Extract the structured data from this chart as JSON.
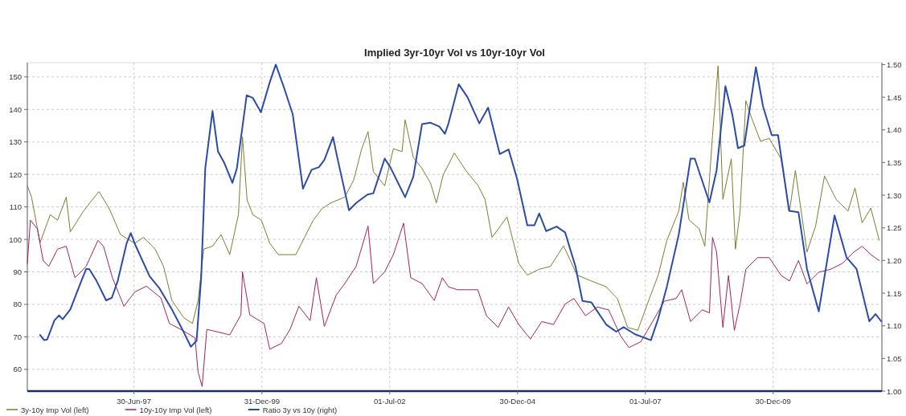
{
  "chart_data": {
    "type": "line",
    "title": "Implied 3yr-10yr Vol  vs  10yr-10yr Vol",
    "xlim": [
      "1995-05-30",
      "2012-02-15"
    ],
    "xticks": [
      {
        "value": "1997-06-30",
        "label": "30-Jun-97"
      },
      {
        "value": "1999-12-31",
        "label": "31-Dec-99"
      },
      {
        "value": "2002-07-01",
        "label": "01-Jul-02"
      },
      {
        "value": "2004-12-30",
        "label": "30-Dec-04"
      },
      {
        "value": "2007-07-01",
        "label": "01-Jul-07"
      },
      {
        "value": "2009-12-30",
        "label": "30-Dec-09"
      }
    ],
    "ylim": [
      53.3,
      154.4
    ],
    "yticks": [
      60,
      70,
      80,
      90,
      100,
      110,
      120,
      130,
      140,
      150
    ],
    "y2lim": [
      1.0,
      1.503
    ],
    "y2ticks": [
      {
        "value": 1.0,
        "label": "1.00"
      },
      {
        "value": 1.05,
        "label": "1.05"
      },
      {
        "value": 1.1,
        "label": "1.10"
      },
      {
        "value": 1.15,
        "label": "1.15"
      },
      {
        "value": 1.2,
        "label": "1.20"
      },
      {
        "value": 1.25,
        "label": "1.25"
      },
      {
        "value": 1.3,
        "label": "1.30"
      },
      {
        "value": 1.35,
        "label": "1.35"
      },
      {
        "value": 1.4,
        "label": "1.40"
      },
      {
        "value": 1.45,
        "label": "1.45"
      },
      {
        "value": 1.5,
        "label": "1.50"
      }
    ],
    "grid": true,
    "legend": "bottom left",
    "marker": "none",
    "line_style": "solid",
    "series": [
      {
        "name": "3y-10y Imp Vol (left)",
        "color": "#7d7d2e",
        "x": [
          "1995-05-30",
          "1995-06-29",
          "1995-08-29",
          "1995-11-10",
          "1996-01-01",
          "1996-03-03",
          "1996-04-01",
          "1996-07-01",
          "1996-09-02",
          "1996-10-23",
          "1997-01-05",
          "1997-03-25",
          "1997-07-05",
          "1997-09-06",
          "1997-11-28",
          "1998-01-27",
          "1998-03-28",
          "1998-06-21",
          "1998-08-22",
          "1998-10-01",
          "1998-11-10",
          "1999-01-12",
          "1999-03-14",
          "1999-05-15",
          "1999-07-16",
          "1999-08-14",
          "1999-09-16",
          "1999-10-27",
          "1999-12-27",
          "2000-02-25",
          "2000-04-26",
          "2000-06-29",
          "2000-08-29",
          "2000-10-30",
          "2001-01-01",
          "2001-03-03",
          "2001-05-04",
          "2001-08-14",
          "2001-10-16",
          "2001-12-13",
          "2002-01-27",
          "2002-03-06",
          "2002-05-26",
          "2002-07-27",
          "2002-09-27",
          "2002-10-19",
          "2002-12-16",
          "2003-02-17",
          "2003-04-19",
          "2003-05-30",
          "2003-07-19",
          "2003-08-25",
          "2003-10-05",
          "2003-12-27",
          "2004-03-21",
          "2004-05-12",
          "2004-07-01",
          "2004-10-16",
          "2005-01-08",
          "2005-03-10",
          "2005-06-03",
          "2005-08-22",
          "2005-11-24",
          "2006-02-28",
          "2006-06-10",
          "2006-09-24",
          "2006-12-13",
          "2007-02-25",
          "2007-05-08",
          "2007-07-30",
          "2007-10-01",
          "2007-12-02",
          "2008-02-25",
          "2008-03-28",
          "2008-05-08",
          "2008-07-19",
          "2008-08-29",
          "2008-10-23",
          "2008-12-02",
          "2009-01-05",
          "2009-03-06",
          "2009-04-05",
          "2009-05-08",
          "2009-06-18",
          "2009-07-30",
          "2009-10-01",
          "2009-12-02",
          "2010-02-25",
          "2010-04-26",
          "2010-06-07",
          "2010-08-29",
          "2010-10-30",
          "2011-01-01",
          "2011-03-25",
          "2011-06-18",
          "2011-08-07",
          "2011-09-27",
          "2011-11-28",
          "2012-01-27"
        ],
        "values": [
          116.5,
          113,
          99,
          107.6,
          105.9,
          113,
          102.3,
          108.5,
          112,
          114.7,
          109.4,
          101.5,
          98.8,
          100.6,
          97,
          91.7,
          81.2,
          75.9,
          74.1,
          81.2,
          97,
          97.9,
          101.5,
          95.3,
          107.6,
          131.5,
          112.1,
          107.6,
          105.9,
          98.8,
          95.3,
          95.3,
          95.3,
          100.6,
          105.9,
          109.4,
          111.2,
          113,
          118.2,
          127.9,
          133.2,
          120.9,
          116.5,
          127.9,
          127,
          136.8,
          125.3,
          121.8,
          117.3,
          111.2,
          120,
          123,
          126.6,
          121.2,
          116.7,
          112.3,
          100.6,
          106.9,
          92.6,
          89,
          90.8,
          91.7,
          98,
          89,
          87.2,
          85.4,
          81.8,
          72.9,
          72,
          81.8,
          89,
          99.7,
          108.7,
          117.6,
          106,
          103.3,
          97.9,
          132,
          153.4,
          112.3,
          124.8,
          97,
          108.7,
          142.7,
          137.3,
          130.2,
          131.1,
          124.8,
          108.7,
          121.2,
          96.1,
          104.2,
          119.5,
          112.3,
          108.7,
          115.8,
          105.1,
          109.6,
          99.7
        ]
      },
      {
        "name": "10y-10y Imp Vol (left)",
        "color": "#a3205f",
        "x": [
          "1995-05-30",
          "1995-06-21",
          "1995-08-10",
          "1995-09-20",
          "1995-10-30",
          "1996-01-01",
          "1996-03-03",
          "1996-05-04",
          "1996-07-23",
          "1996-10-16",
          "1996-11-24",
          "1997-01-27",
          "1997-04-19",
          "1997-07-05",
          "1997-09-27",
          "1998-01-08",
          "1998-03-10",
          "1998-05-30",
          "1998-09-09",
          "1998-10-01",
          "1998-10-30",
          "1998-12-02",
          "1999-02-20",
          "1999-05-15",
          "1999-08-03",
          "1999-08-14",
          "1999-10-05",
          "2000-01-16",
          "2000-02-25",
          "2000-05-19",
          "2000-07-19",
          "2000-09-20",
          "2000-12-09",
          "2001-01-23",
          "2001-03-21",
          "2001-06-14",
          "2001-08-14",
          "2001-11-03",
          "2002-01-27",
          "2002-03-06",
          "2002-05-26",
          "2002-07-27",
          "2002-10-08",
          "2002-11-28",
          "2003-02-17",
          "2003-05-15",
          "2003-07-12",
          "2003-08-25",
          "2003-10-27",
          "2003-12-27",
          "2004-03-21",
          "2004-05-22",
          "2004-08-14",
          "2004-10-27",
          "2005-01-08",
          "2005-04-01",
          "2005-06-21",
          "2005-09-13",
          "2005-12-05",
          "2006-02-06",
          "2006-04-30",
          "2006-07-23",
          "2006-10-12",
          "2007-01-05",
          "2007-03-06",
          "2007-05-30",
          "2007-08-22",
          "2007-11-14",
          "2008-02-06",
          "2008-03-17",
          "2008-05-19",
          "2008-08-10",
          "2008-10-01",
          "2008-10-23",
          "2008-11-21",
          "2009-01-05",
          "2009-02-14",
          "2009-03-28",
          "2009-05-08",
          "2009-06-18",
          "2009-09-09",
          "2009-12-02",
          "2010-02-25",
          "2010-04-26",
          "2010-06-29",
          "2010-08-29",
          "2010-11-21",
          "2011-02-14",
          "2011-05-08",
          "2011-07-30",
          "2011-09-27",
          "2011-11-28",
          "2012-01-27"
        ],
        "values": [
          92.6,
          105.9,
          103.2,
          93.5,
          91.7,
          97,
          97.9,
          88.2,
          91.7,
          99.7,
          97.9,
          88.2,
          79.4,
          83.8,
          85.6,
          82,
          74.1,
          72.3,
          69.7,
          59.1,
          54.7,
          72.3,
          71.5,
          70.6,
          76.8,
          90,
          76.8,
          74.1,
          66.2,
          68,
          72.3,
          79.4,
          75,
          88.2,
          73.2,
          82.9,
          86.4,
          91.7,
          104.1,
          86.4,
          90,
          95.3,
          105,
          88.2,
          86.4,
          81.2,
          88.2,
          85.4,
          84.5,
          84.5,
          84.5,
          76.5,
          72.9,
          79.2,
          73.8,
          69.3,
          74.7,
          73.8,
          80.1,
          81.8,
          76.5,
          79.2,
          78.3,
          70.3,
          66.7,
          68.5,
          74.7,
          81,
          81.8,
          84.5,
          74.7,
          78.3,
          77.4,
          100.6,
          96.1,
          72.9,
          88.9,
          72,
          80.1,
          90.8,
          94.4,
          94.4,
          88.9,
          87.2,
          93.5,
          86.3,
          89.9,
          90.8,
          92.6,
          96.1,
          97.9,
          95.3,
          93.5
        ]
      },
      {
        "name": "Ratio 3y vs 10y (right)",
        "color": "#2b4ba8",
        "axis": "y2",
        "x": [
          "1995-08-29",
          "1995-09-27",
          "1995-10-19",
          "1995-12-09",
          "1996-01-12",
          "1996-02-06",
          "1996-04-01",
          "1996-06-03",
          "1996-07-23",
          "1996-08-14",
          "1996-10-05",
          "1996-12-13",
          "1997-01-23",
          "1997-03-06",
          "1997-05-08",
          "1997-06-07",
          "1997-07-05",
          "1997-10-19",
          "1997-12-27",
          "1998-03-28",
          "1998-06-21",
          "1998-08-10",
          "1998-09-20",
          "1998-10-23",
          "1998-11-21",
          "1999-01-12",
          "1999-02-20",
          "1999-04-05",
          "1999-06-03",
          "1999-07-05",
          "1999-09-13",
          "1999-10-27",
          "1999-12-24",
          "2000-02-25",
          "2000-04-08",
          "2000-06-07",
          "2000-08-07",
          "2000-10-19",
          "2000-12-20",
          "2001-02-10",
          "2001-03-21",
          "2001-05-22",
          "2001-06-21",
          "2001-09-13",
          "2001-11-03",
          "2002-01-23",
          "2002-03-06",
          "2002-05-26",
          "2002-07-05",
          "2002-10-19",
          "2002-12-16",
          "2003-02-17",
          "2003-04-19",
          "2003-06-21",
          "2003-07-30",
          "2003-08-25",
          "2003-11-06",
          "2004-01-08",
          "2004-04-01",
          "2004-06-03",
          "2004-08-25",
          "2004-10-27",
          "2004-12-27",
          "2005-03-10",
          "2005-04-30",
          "2005-06-03",
          "2005-07-23",
          "2005-10-05",
          "2005-12-05",
          "2006-02-17",
          "2006-04-08",
          "2006-06-10",
          "2006-09-24",
          "2006-12-05",
          "2007-01-27",
          "2007-04-19",
          "2007-08-10",
          "2007-10-01",
          "2007-12-02",
          "2008-02-25",
          "2008-05-19",
          "2008-06-18",
          "2008-10-01",
          "2008-11-21",
          "2009-01-23",
          "2009-03-14",
          "2009-04-23",
          "2009-06-07",
          "2009-08-29",
          "2009-10-19",
          "2009-12-20",
          "2010-02-03",
          "2010-04-23",
          "2010-06-29",
          "2010-08-29",
          "2010-11-21",
          "2011-03-14",
          "2011-06-07",
          "2011-08-18",
          "2011-11-17",
          "2012-01-01",
          "2012-02-10"
        ],
        "values": [
          1.086,
          1.078,
          1.079,
          1.108,
          1.116,
          1.11,
          1.125,
          1.16,
          1.187,
          1.187,
          1.169,
          1.139,
          1.143,
          1.169,
          1.226,
          1.242,
          1.226,
          1.176,
          1.158,
          1.125,
          1.09,
          1.068,
          1.077,
          1.174,
          1.341,
          1.429,
          1.367,
          1.35,
          1.319,
          1.341,
          1.453,
          1.449,
          1.427,
          1.473,
          1.5,
          1.464,
          1.424,
          1.31,
          1.339,
          1.343,
          1.354,
          1.389,
          1.358,
          1.277,
          1.288,
          1.301,
          1.303,
          1.356,
          1.343,
          1.297,
          1.328,
          1.409,
          1.411,
          1.405,
          1.394,
          1.41,
          1.47,
          1.45,
          1.41,
          1.434,
          1.363,
          1.37,
          1.325,
          1.254,
          1.254,
          1.272,
          1.245,
          1.252,
          1.243,
          1.191,
          1.138,
          1.136,
          1.102,
          1.091,
          1.098,
          1.087,
          1.078,
          1.111,
          1.16,
          1.24,
          1.356,
          1.356,
          1.289,
          1.338,
          1.467,
          1.423,
          1.372,
          1.376,
          1.496,
          1.436,
          1.392,
          1.392,
          1.276,
          1.274,
          1.187,
          1.122,
          1.269,
          1.205,
          1.187,
          1.107,
          1.118,
          1.107
        ]
      }
    ]
  }
}
